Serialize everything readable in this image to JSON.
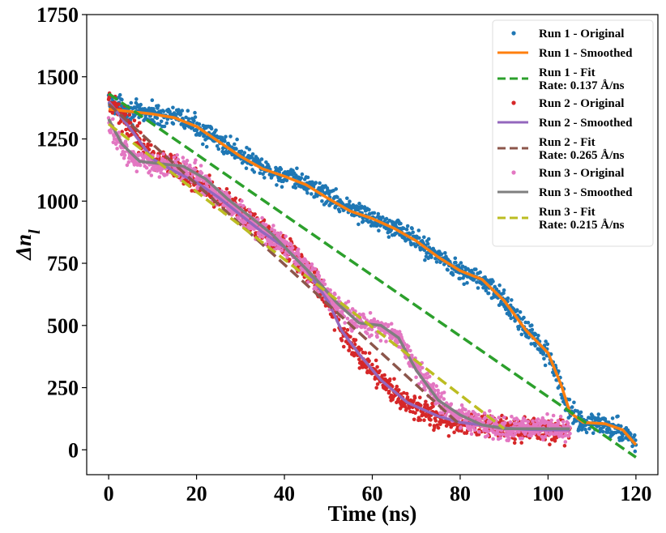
{
  "chart_data": {
    "type": "scatter",
    "title": "",
    "xlabel": "Time (ns)",
    "ylabel": "Δn",
    "ylabel_subscript": "l",
    "xlim": [
      -5,
      125
    ],
    "ylim": [
      -100,
      1750
    ],
    "xticks": [
      "0",
      "20",
      "40",
      "60",
      "80",
      "100",
      "120"
    ],
    "yticks": [
      "0",
      "250",
      "500",
      "750",
      "1000",
      "1250",
      "1500",
      "1750"
    ],
    "legend_position": "top-right",
    "colors": {
      "run1_original": "#1f77b4",
      "run1_smoothed": "#ff7f0e",
      "run1_fit": "#2ca02c",
      "run2_original": "#d62728",
      "run2_smoothed": "#9467bd",
      "run2_fit": "#8c564b",
      "run3_original": "#e377c2",
      "run3_smoothed": "#7f7f7f",
      "run3_fit": "#bcbd22"
    },
    "series": [
      {
        "name": "Run 1 - Original",
        "kind": "scatter",
        "color_key": "run1_original",
        "x_range": [
          0,
          120
        ],
        "noise": 35,
        "control": [
          [
            0,
            1400
          ],
          [
            5,
            1360
          ],
          [
            10,
            1350
          ],
          [
            15,
            1340
          ],
          [
            20,
            1300
          ],
          [
            25,
            1240
          ],
          [
            30,
            1190
          ],
          [
            35,
            1130
          ],
          [
            40,
            1100
          ],
          [
            45,
            1070
          ],
          [
            50,
            1020
          ],
          [
            55,
            970
          ],
          [
            60,
            930
          ],
          [
            65,
            900
          ],
          [
            70,
            840
          ],
          [
            75,
            780
          ],
          [
            80,
            720
          ],
          [
            85,
            680
          ],
          [
            90,
            600
          ],
          [
            95,
            480
          ],
          [
            100,
            380
          ],
          [
            103,
            250
          ],
          [
            105,
            150
          ],
          [
            108,
            110
          ],
          [
            113,
            100
          ],
          [
            117,
            70
          ],
          [
            120,
            30
          ]
        ]
      },
      {
        "name": "Run 1 - Smoothed",
        "kind": "line",
        "color_key": "run1_smoothed",
        "points": [
          [
            0,
            1370
          ],
          [
            5,
            1360
          ],
          [
            10,
            1350
          ],
          [
            15,
            1335
          ],
          [
            20,
            1300
          ],
          [
            25,
            1240
          ],
          [
            30,
            1180
          ],
          [
            35,
            1130
          ],
          [
            40,
            1100
          ],
          [
            45,
            1065
          ],
          [
            50,
            1010
          ],
          [
            55,
            960
          ],
          [
            60,
            930
          ],
          [
            65,
            890
          ],
          [
            70,
            840
          ],
          [
            75,
            775
          ],
          [
            80,
            720
          ],
          [
            85,
            685
          ],
          [
            90,
            600
          ],
          [
            95,
            480
          ],
          [
            100,
            390
          ],
          [
            103,
            260
          ],
          [
            105,
            150
          ],
          [
            108,
            110
          ],
          [
            113,
            105
          ],
          [
            117,
            80
          ],
          [
            120,
            20
          ]
        ]
      },
      {
        "name": "Run 1 - Fit",
        "label_line2": "Rate: 0.137 Å/ns",
        "kind": "dashed",
        "color_key": "run1_fit",
        "points": [
          [
            0,
            1432
          ],
          [
            120,
            -30
          ]
        ]
      },
      {
        "name": "Run 2 - Original",
        "kind": "scatter",
        "color_key": "run2_original",
        "x_range": [
          0,
          105
        ],
        "noise": 40,
        "control": [
          [
            0,
            1400
          ],
          [
            5,
            1300
          ],
          [
            10,
            1180
          ],
          [
            15,
            1130
          ],
          [
            20,
            1080
          ],
          [
            25,
            1020
          ],
          [
            30,
            950
          ],
          [
            35,
            880
          ],
          [
            40,
            820
          ],
          [
            45,
            730
          ],
          [
            50,
            600
          ],
          [
            53,
            480
          ],
          [
            57,
            380
          ],
          [
            62,
            280
          ],
          [
            68,
            190
          ],
          [
            75,
            130
          ],
          [
            80,
            110
          ],
          [
            85,
            100
          ],
          [
            90,
            85
          ],
          [
            95,
            80
          ],
          [
            100,
            80
          ],
          [
            105,
            80
          ]
        ]
      },
      {
        "name": "Run 2 - Smoothed",
        "kind": "line",
        "color_key": "run2_smoothed",
        "points": [
          [
            0,
            1400
          ],
          [
            5,
            1290
          ],
          [
            10,
            1170
          ],
          [
            15,
            1120
          ],
          [
            20,
            1075
          ],
          [
            25,
            1015
          ],
          [
            30,
            945
          ],
          [
            35,
            875
          ],
          [
            40,
            815
          ],
          [
            45,
            725
          ],
          [
            50,
            595
          ],
          [
            53,
            480
          ],
          [
            57,
            385
          ],
          [
            62,
            280
          ],
          [
            68,
            190
          ],
          [
            75,
            135
          ],
          [
            80,
            110
          ],
          [
            85,
            100
          ],
          [
            90,
            88
          ],
          [
            95,
            82
          ],
          [
            100,
            80
          ],
          [
            105,
            80
          ]
        ]
      },
      {
        "name": "Run 2 - Fit",
        "label_line2": "Rate: 0.265 Å/ns",
        "kind": "dashed",
        "color_key": "run2_fit",
        "points": [
          [
            0,
            1390
          ],
          [
            80,
            100
          ]
        ]
      },
      {
        "name": "Run 3 - Original",
        "kind": "scatter",
        "color_key": "run3_original",
        "x_range": [
          0,
          105
        ],
        "noise": 40,
        "control": [
          [
            0,
            1300
          ],
          [
            5,
            1180
          ],
          [
            10,
            1150
          ],
          [
            15,
            1140
          ],
          [
            20,
            1100
          ],
          [
            25,
            1020
          ],
          [
            30,
            950
          ],
          [
            35,
            880
          ],
          [
            40,
            820
          ],
          [
            45,
            730
          ],
          [
            50,
            620
          ],
          [
            55,
            530
          ],
          [
            60,
            500
          ],
          [
            65,
            470
          ],
          [
            70,
            330
          ],
          [
            75,
            200
          ],
          [
            80,
            130
          ],
          [
            85,
            100
          ],
          [
            90,
            85
          ],
          [
            95,
            85
          ],
          [
            100,
            85
          ],
          [
            105,
            85
          ]
        ]
      },
      {
        "name": "Run 3 - Smoothed",
        "kind": "line",
        "color_key": "run3_smoothed",
        "points": [
          [
            0,
            1330
          ],
          [
            3,
            1230
          ],
          [
            7,
            1160
          ],
          [
            12,
            1150
          ],
          [
            17,
            1140
          ],
          [
            22,
            1090
          ],
          [
            27,
            1010
          ],
          [
            32,
            940
          ],
          [
            37,
            870
          ],
          [
            42,
            780
          ],
          [
            47,
            690
          ],
          [
            52,
            590
          ],
          [
            57,
            510
          ],
          [
            62,
            500
          ],
          [
            66,
            450
          ],
          [
            70,
            320
          ],
          [
            75,
            200
          ],
          [
            80,
            140
          ],
          [
            85,
            100
          ],
          [
            90,
            85
          ],
          [
            95,
            85
          ],
          [
            100,
            85
          ],
          [
            105,
            85
          ]
        ]
      },
      {
        "name": "Run 3 - Fit",
        "label_line2": "Rate: 0.215 Å/ns",
        "kind": "dashed",
        "color_key": "run3_fit",
        "points": [
          [
            0,
            1310
          ],
          [
            90,
            85
          ]
        ]
      }
    ]
  }
}
